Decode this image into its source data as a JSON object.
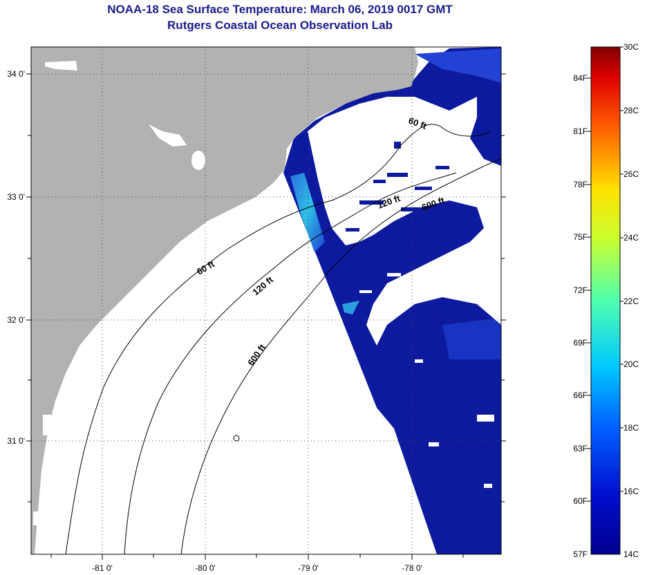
{
  "header": {
    "title": "NOAA-18 Sea Surface Temperature:  March 06, 2019 0017 GMT",
    "subtitle": "Rutgers Coastal Ocean Observation Lab"
  },
  "map": {
    "lat_ticks": [
      "34 0'",
      "33 0'",
      "32 0'",
      "31 0'"
    ],
    "lon_ticks": [
      "-81 0'",
      "-80 0'",
      "-79 0'",
      "-78 0'"
    ],
    "contours": [
      "60 ft",
      "120 ft",
      "600 ft",
      "60 ft",
      "120 ft",
      "600 ft"
    ],
    "colors": {
      "land": "#b2b2b2",
      "no_data": "#ffffff",
      "sst_cold": "#0d1a9e",
      "sst_cool": "#1e3fd2",
      "sst_aqua": "#2fb8e0"
    }
  },
  "colorbar": {
    "fahrenheit": [
      "84F",
      "81F",
      "78F",
      "75F",
      "72F",
      "69F",
      "66F",
      "63F",
      "60F",
      "57F"
    ],
    "celsius": [
      "30C",
      "28C",
      "26C",
      "24C",
      "22C",
      "20C",
      "18C",
      "16C",
      "14C"
    ]
  }
}
